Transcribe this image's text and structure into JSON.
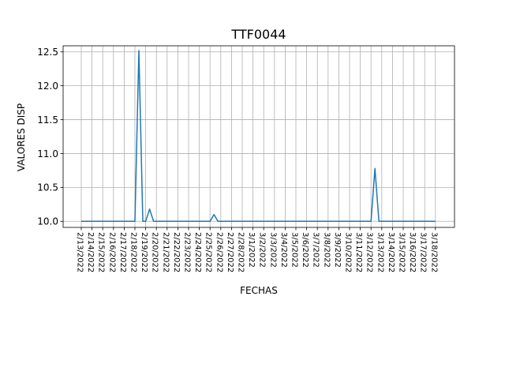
{
  "chart_data": {
    "type": "line",
    "title": "TTF0044",
    "xlabel": "FECHAS",
    "ylabel": "VALORES DISP",
    "grid": true,
    "ylim": [
      9.91,
      12.59
    ],
    "yticks": [
      10.0,
      10.5,
      11.0,
      11.5,
      12.0,
      12.5
    ],
    "ytick_labels": [
      "10.0",
      "10.5",
      "11.0",
      "11.5",
      "12.0",
      "12.5"
    ],
    "x": [
      "2/13/2022",
      "2/14/2022",
      "2/15/2022",
      "2/16/2022",
      "2/17/2022",
      "2/18/2022",
      "2/19/2022",
      "2/20/2022",
      "2/21/2022",
      "2/22/2022",
      "2/23/2022",
      "2/24/2022",
      "2/25/2022",
      "2/26/2022",
      "2/27/2022",
      "2/28/2022",
      "3/1/2022",
      "3/2/2022",
      "3/3/2022",
      "3/4/2022",
      "3/5/2022",
      "3/6/2022",
      "3/7/2022",
      "3/8/2022",
      "3/9/2022",
      "3/10/2022",
      "3/11/2022",
      "3/12/2022",
      "3/13/2022",
      "3/14/2022",
      "3/15/2022",
      "3/16/2022",
      "3/17/2022",
      "3/18/2022"
    ],
    "series": [
      {
        "color": "#1f77b4",
        "points": [
          [
            "2/13/2022",
            10.0
          ],
          [
            "2/14/2022",
            10.0
          ],
          [
            "2/15/2022",
            10.0
          ],
          [
            "2/16/2022",
            10.0
          ],
          [
            "2/17/2022",
            10.0
          ],
          [
            "2/18/2022",
            10.0
          ],
          [
            "2/18/2022",
            12.52
          ],
          [
            "2/18/2022",
            10.0
          ],
          [
            "2/19/2022",
            10.0
          ],
          [
            "2/19/2022",
            10.18
          ],
          [
            "2/19/2022",
            10.0
          ],
          [
            "2/20/2022",
            10.0
          ],
          [
            "2/21/2022",
            10.0
          ],
          [
            "2/22/2022",
            10.0
          ],
          [
            "2/23/2022",
            10.0
          ],
          [
            "2/24/2022",
            10.0
          ],
          [
            "2/25/2022",
            10.0
          ],
          [
            "2/25/2022",
            10.1
          ],
          [
            "2/25/2022",
            10.0
          ],
          [
            "2/26/2022",
            10.0
          ],
          [
            "2/27/2022",
            10.0
          ],
          [
            "2/28/2022",
            10.0
          ],
          [
            "3/1/2022",
            10.0
          ],
          [
            "3/2/2022",
            10.0
          ],
          [
            "3/3/2022",
            10.0
          ],
          [
            "3/4/2022",
            10.0
          ],
          [
            "3/5/2022",
            10.0
          ],
          [
            "3/6/2022",
            10.0
          ],
          [
            "3/7/2022",
            10.0
          ],
          [
            "3/8/2022",
            10.0
          ],
          [
            "3/9/2022",
            10.0
          ],
          [
            "3/10/2022",
            10.0
          ],
          [
            "3/11/2022",
            10.0
          ],
          [
            "3/12/2022",
            10.0
          ],
          [
            "3/12/2022",
            10.78
          ],
          [
            "3/12/2022",
            10.0
          ],
          [
            "3/13/2022",
            10.0
          ],
          [
            "3/14/2022",
            10.0
          ],
          [
            "3/15/2022",
            10.0
          ],
          [
            "3/16/2022",
            10.0
          ],
          [
            "3/17/2022",
            10.0
          ],
          [
            "3/18/2022",
            10.0
          ]
        ]
      }
    ]
  }
}
